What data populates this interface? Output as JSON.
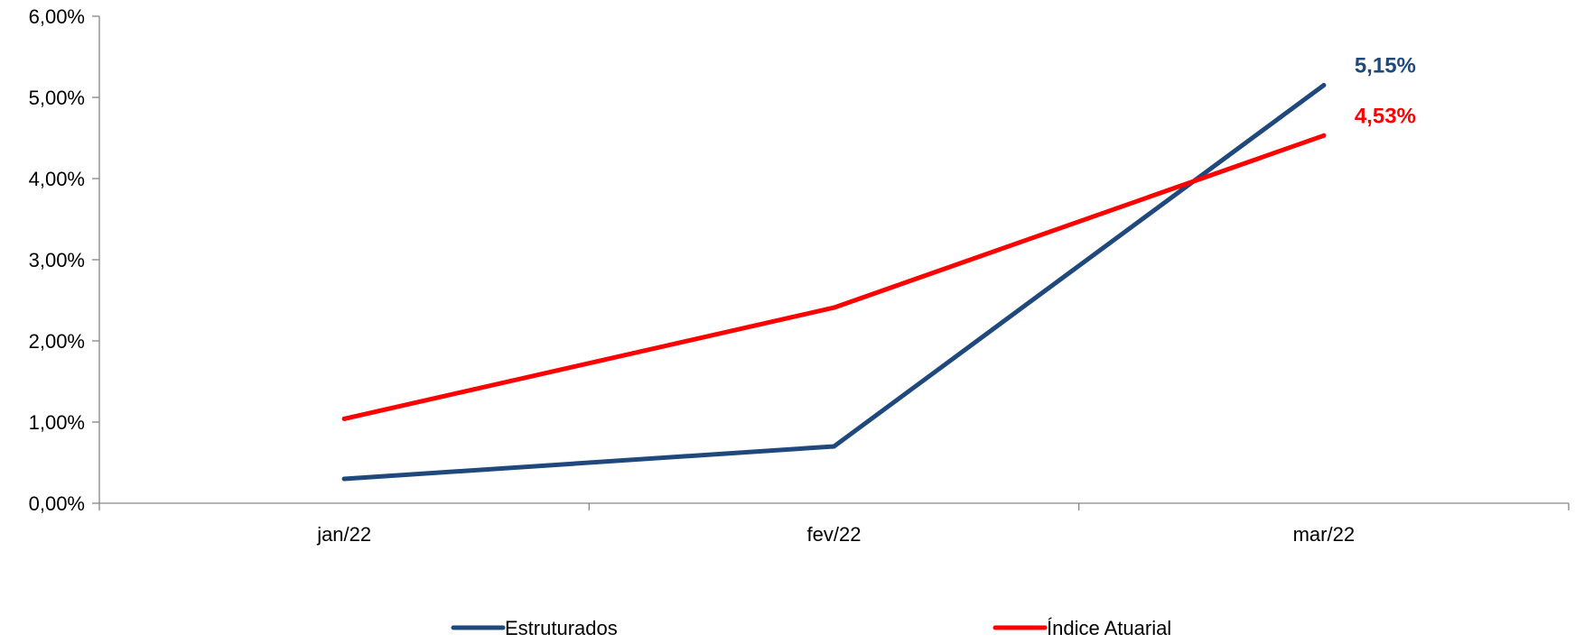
{
  "chart_data": {
    "type": "line",
    "categories": [
      "jan/22",
      "fev/22",
      "mar/22"
    ],
    "series": [
      {
        "name": "Estruturados",
        "values": [
          0.3,
          0.7,
          5.15
        ],
        "color": "#1f497d",
        "end_label": "5,15%"
      },
      {
        "name": "Índice Atuarial",
        "values": [
          1.04,
          2.41,
          4.53
        ],
        "color": "#ff0000",
        "end_label": "4,53%"
      }
    ],
    "y_ticks": [
      {
        "value": 0,
        "label": "0,00%"
      },
      {
        "value": 1,
        "label": "1,00%"
      },
      {
        "value": 2,
        "label": "2,00%"
      },
      {
        "value": 3,
        "label": "3,00%"
      },
      {
        "value": 4,
        "label": "4,00%"
      },
      {
        "value": 5,
        "label": "5,00%"
      },
      {
        "value": 6,
        "label": "6,00%"
      }
    ],
    "ylim": [
      0,
      6
    ],
    "title": "",
    "xlabel": "",
    "ylabel": "",
    "grid": false,
    "legend_position": "bottom"
  }
}
